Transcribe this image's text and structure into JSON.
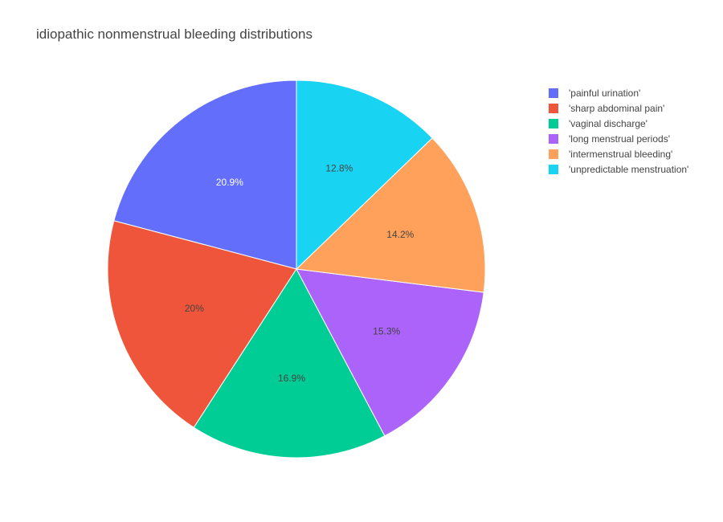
{
  "chart_data": {
    "type": "pie",
    "title": "idiopathic nonmenstrual bleeding distributions",
    "labels": [
      "'painful urination'",
      "'sharp abdominal pain'",
      "'vaginal discharge'",
      "'long menstrual periods'",
      "'intermenstrual bleeding'",
      "'unpredictable menstruation'"
    ],
    "values": [
      20.9,
      20.0,
      16.9,
      15.3,
      14.2,
      12.8
    ],
    "percent_labels": [
      "20.9%",
      "20%",
      "16.9%",
      "15.3%",
      "14.2%",
      "12.8%"
    ],
    "colors": [
      "#636efa",
      "#ef553b",
      "#00cc96",
      "#ab63fa",
      "#ffa15a",
      "#19d3f3"
    ],
    "label_colors": [
      "#ffffff",
      "#444444",
      "#444444",
      "#444444",
      "#444444",
      "#444444"
    ],
    "direction": "counterclockwise",
    "start": "top",
    "legend_position": "top-right"
  }
}
